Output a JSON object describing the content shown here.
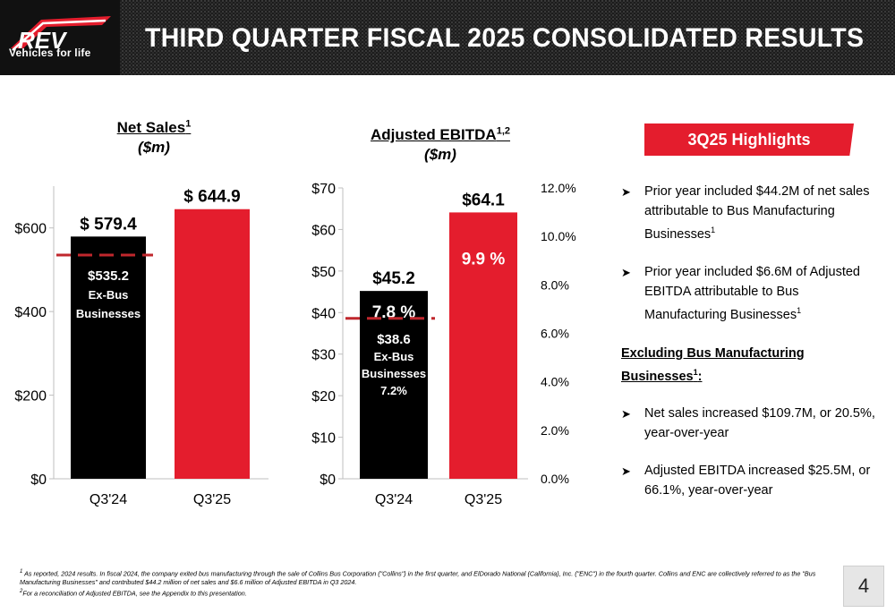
{
  "header": {
    "title": "THIRD QUARTER FISCAL 2025 CONSOLIDATED RESULTS",
    "logo_text": "REV",
    "logo_tagline": "Vehicles for life"
  },
  "net_sales_chart": {
    "title": "Net Sales",
    "title_sup": "1",
    "unit": "($m)"
  },
  "ebitda_chart": {
    "title": "Adjusted EBITDA",
    "title_sup": "1,2",
    "unit": "($m)"
  },
  "chart_data": [
    {
      "type": "bar",
      "title": "Net Sales ($m)",
      "categories": [
        "Q3'24",
        "Q3'25"
      ],
      "values": [
        579.4,
        644.9
      ],
      "value_labels": [
        "$ 579.4",
        "$ 644.9"
      ],
      "bar_colors": [
        "#000000",
        "#e41d2d"
      ],
      "ylim": [
        0,
        700
      ],
      "yticks": [
        0,
        200,
        400,
        600
      ],
      "ytick_labels": [
        "$0",
        "$200",
        "$400",
        "$600"
      ],
      "reference_line": {
        "category": "Q3'24",
        "value": 535.2,
        "color": "#c0272d",
        "style": "dashed"
      },
      "inner_label": [
        "$535.2",
        "Ex-Bus",
        "Businesses"
      ]
    },
    {
      "type": "bar",
      "title": "Adjusted EBITDA ($m)",
      "categories": [
        "Q3'24",
        "Q3'25"
      ],
      "values": [
        45.2,
        64.1
      ],
      "value_labels": [
        "$45.2",
        "$64.1"
      ],
      "margins": [
        7.8,
        9.9
      ],
      "margin_labels": [
        "7.8 %",
        "9.9 %"
      ],
      "bar_colors": [
        "#000000",
        "#e41d2d"
      ],
      "ylim": [
        0,
        70
      ],
      "yticks": [
        0,
        10,
        20,
        30,
        40,
        50,
        60,
        70
      ],
      "ytick_labels": [
        "$0",
        "$10",
        "$20",
        "$30",
        "$40",
        "$50",
        "$60",
        "$70"
      ],
      "secondary_ylim": [
        0,
        12
      ],
      "secondary_yticks": [
        0,
        2,
        4,
        6,
        8,
        10,
        12
      ],
      "secondary_ytick_labels": [
        "0.0%",
        "2.0%",
        "4.0%",
        "6.0%",
        "8.0%",
        "10.0%",
        "12.0%"
      ],
      "reference_line": {
        "category": "Q3'24",
        "value": 38.6,
        "color": "#c0272d",
        "style": "dashed"
      },
      "inner_label": [
        "$38.6",
        "Ex-Bus",
        "Businesses",
        "7.2%"
      ]
    }
  ],
  "highlights": {
    "tab_label": "3Q25 Highlights",
    "items": [
      {
        "text": "Prior year included $44.2M of net sales attributable to Bus Manufacturing Businesses",
        "sup": "1"
      },
      {
        "text": "Prior year included $6.6M of Adjusted EBITDA attributable to Bus Manufacturing Businesses",
        "sup": "1"
      }
    ],
    "subheading": "Excluding Bus Manufacturing Businesses",
    "subheading_sup": "1",
    "subheading_suffix": ":",
    "sub_items": [
      {
        "text": "Net sales increased $109.7M, or 20.5%, year-over-year"
      },
      {
        "text": "Adjusted EBITDA increased $25.5M, or 66.1%, year-over-year"
      }
    ]
  },
  "footnotes": {
    "line1_sup": "1",
    "line1": "As reported, 2024 results. In fiscal 2024, the company exited bus manufacturing through the sale of Collins Bus Corporation (\"Collins\") in the first quarter, and ElDorado National (California), Inc. (\"ENC\") in the fourth quarter. Collins and ENC are collectively referred to as the \"Bus Manufacturing Businesses\" and contributed $44.2 million of net sales and $6.6 million of Adjusted EBITDA in Q3 2024.",
    "line2_sup": "2",
    "line2": "For a reconciliation of Adjusted EBITDA, see the Appendix to this presentation."
  },
  "page_number": "4",
  "colors": {
    "accent_red": "#e41d2d",
    "dark": "#000000"
  }
}
